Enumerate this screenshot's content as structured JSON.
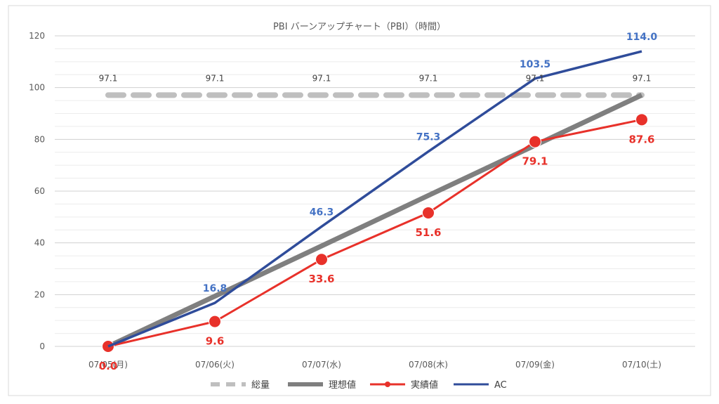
{
  "chart_data": {
    "type": "line",
    "title": "PBI バーンアップチャート（PBI）（時間）",
    "categories": [
      "07/05(月)",
      "07/06(火)",
      "07/07(水)",
      "07/08(木)",
      "07/09(金)",
      "07/10(土)"
    ],
    "ylim": [
      0,
      120
    ],
    "yticks": [
      "0",
      "20",
      "40",
      "60",
      "80",
      "100",
      "120"
    ],
    "grid": true,
    "legend_position": "bottom",
    "series": [
      {
        "name": "総量",
        "values": [
          97.1,
          97.1,
          97.1,
          97.1,
          97.1,
          97.1
        ],
        "labels": [
          "97.1",
          "97.1",
          "97.1",
          "97.1",
          "97.1",
          "97.1"
        ],
        "color": "#bfbfbf",
        "style": "dashed"
      },
      {
        "name": "理想値",
        "values": [
          0,
          19.4,
          38.8,
          58.3,
          77.7,
          97.1
        ],
        "color": "#7f7f7f",
        "style": "thick"
      },
      {
        "name": "実績値",
        "values": [
          0,
          9.6,
          33.6,
          51.6,
          79.1,
          87.6
        ],
        "labels": [
          "0.0",
          "9.6",
          "33.6",
          "51.6",
          "79.1",
          "87.6"
        ],
        "color": "#e8312a",
        "style": "markers"
      },
      {
        "name": "AC",
        "values": [
          0,
          16.8,
          46.3,
          75.3,
          103.5,
          114.0
        ],
        "labels": [
          "",
          "16.8",
          "46.3",
          "75.3",
          "103.5",
          "114.0"
        ],
        "color": "#2f4c9a",
        "label_color": "#4472c4",
        "style": "line"
      }
    ]
  }
}
